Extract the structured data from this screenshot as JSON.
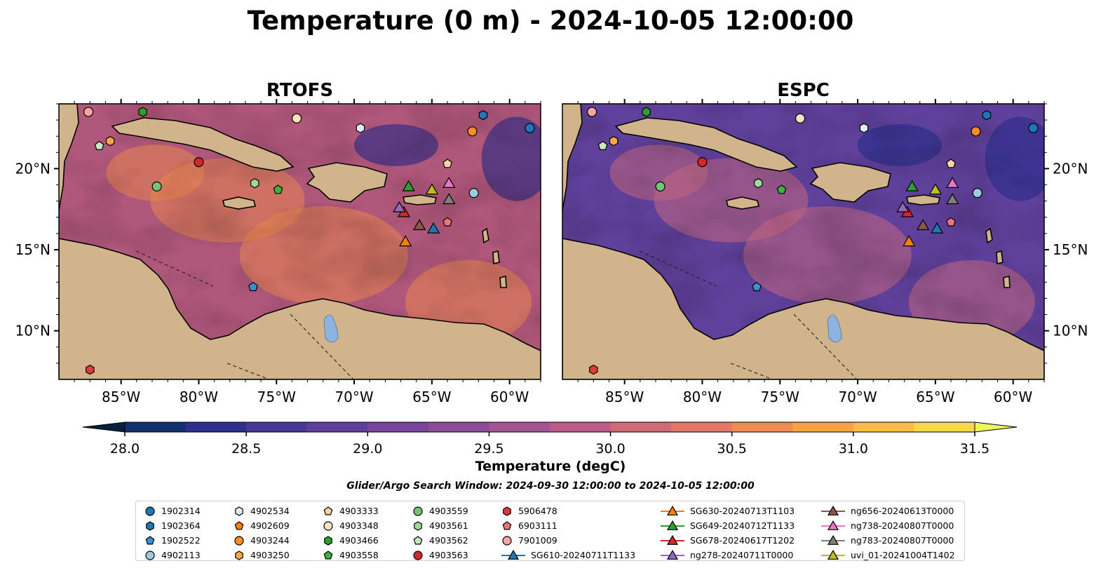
{
  "title": "Temperature (0 m) - 2024-10-05 12:00:00",
  "subtitle": "Glider/Argo Search Window: 2024-09-30 12:00:00 to 2024-10-05 12:00:00",
  "colorbar": {
    "label": "Temperature (degC)",
    "min": 28.0,
    "max": 31.5,
    "step": 0.25,
    "ticks": [
      "28.0",
      "28.5",
      "29.0",
      "29.5",
      "30.0",
      "30.5",
      "31.0",
      "31.5"
    ],
    "colors": [
      "#0b1f3a",
      "#12306f",
      "#2d2f8c",
      "#483996",
      "#5e3f99",
      "#77459a",
      "#8e4c98",
      "#a45493",
      "#bb5d88",
      "#d06978",
      "#e37866",
      "#f08b52",
      "#f7a145",
      "#f9bd47",
      "#f6d74f",
      "#eef65f"
    ]
  },
  "chart_data": [
    {
      "type": "map",
      "title": "RTOFS",
      "xlim": [
        -89,
        -58
      ],
      "ylim": [
        7,
        24
      ],
      "xticks": [
        "85°W",
        "80°W",
        "75°W",
        "70°W",
        "65°W",
        "60°W"
      ],
      "yticks": [
        "20°N",
        "15°N",
        "10°N"
      ],
      "ocean_base_color": "#b0587a",
      "warm_patch_color": "#e8854f",
      "cool_patch_color": "#3a2f86",
      "land_color": "#d2b48c",
      "lake_color": "#8fb3e0"
    },
    {
      "type": "map",
      "title": "ESPC",
      "xlim": [
        -89,
        -58
      ],
      "ylim": [
        7,
        24
      ],
      "xticks": [
        "85°W",
        "80°W",
        "75°W",
        "70°W",
        "65°W",
        "60°W"
      ],
      "yticks": [
        "20°N",
        "15°N",
        "10°N"
      ],
      "ocean_base_color": "#5f409a",
      "warm_patch_color": "#c26680",
      "cool_patch_color": "#2d2f8c",
      "land_color": "#d2b48c",
      "lake_color": "#8fb3e0"
    }
  ],
  "platforms": [
    {
      "id": "1902314",
      "lon": -58.7,
      "lat": 22.5,
      "marker": "circle",
      "color": "#1f77b4"
    },
    {
      "id": "1902364",
      "lon": -61.7,
      "lat": 23.3,
      "marker": "hexagon",
      "color": "#1f77b4"
    },
    {
      "id": "1902522",
      "lon": -76.5,
      "lat": 12.7,
      "marker": "pentagon",
      "color": "#3a8fd0"
    },
    {
      "id": "4902113",
      "lon": -62.3,
      "lat": 18.5,
      "marker": "circle",
      "color": "#9ecae1"
    },
    {
      "id": "4902534",
      "lon": -69.6,
      "lat": 22.5,
      "marker": "hexagon",
      "color": "#d9efff"
    },
    {
      "id": "4902609",
      "lon": null,
      "lat": null,
      "marker": "pentagon",
      "color": "#ff7f0e"
    },
    {
      "id": "4903244",
      "lon": -62.4,
      "lat": 22.3,
      "marker": "circle",
      "color": "#ff8c28"
    },
    {
      "id": "4903250",
      "lon": -85.7,
      "lat": 21.7,
      "marker": "hexagon",
      "color": "#ffa64d"
    },
    {
      "id": "4903333",
      "lon": -64.0,
      "lat": 20.3,
      "marker": "pentagon",
      "color": "#ffd1a3"
    },
    {
      "id": "4903348",
      "lon": -73.7,
      "lat": 23.1,
      "marker": "circle",
      "color": "#ffe1c2"
    },
    {
      "id": "4903466",
      "lon": -83.6,
      "lat": 23.5,
      "marker": "hexagon",
      "color": "#2ca02c"
    },
    {
      "id": "4903558",
      "lon": -74.9,
      "lat": 18.7,
      "marker": "pentagon",
      "color": "#3cb43c"
    },
    {
      "id": "4903559",
      "lon": -82.7,
      "lat": 18.9,
      "marker": "circle",
      "color": "#74c476"
    },
    {
      "id": "4903561",
      "lon": -76.4,
      "lat": 19.1,
      "marker": "hexagon",
      "color": "#a1d99b"
    },
    {
      "id": "4903562",
      "lon": -86.4,
      "lat": 21.4,
      "marker": "pentagon",
      "color": "#c7e9c0"
    },
    {
      "id": "4903563",
      "lon": -80.0,
      "lat": 20.4,
      "marker": "circle",
      "color": "#d62728"
    },
    {
      "id": "5906478",
      "lon": null,
      "lat": null,
      "marker": "hexagon",
      "color": "#e03b3b"
    },
    {
      "id": "6903111",
      "lon": -64.0,
      "lat": 16.7,
      "marker": "pentagon",
      "color": "#e8767a"
    },
    {
      "id": "7901009",
      "lon": -87.1,
      "lat": 23.5,
      "marker": "circle",
      "color": "#f4a6a3"
    },
    {
      "id": "5906478_b",
      "lon": -87.0,
      "lat": 7.6,
      "marker": "hexagon",
      "color": "#e03b3b"
    }
  ],
  "gliders": [
    {
      "id": "SG610-20240711T1133",
      "lon": -64.9,
      "lat": 16.3,
      "color": "#1f77b4"
    },
    {
      "id": "SG630-20240713T1103",
      "lon": -66.7,
      "lat": 15.5,
      "color": "#ff7f0e"
    },
    {
      "id": "SG649-20240712T1133",
      "lon": -66.5,
      "lat": 18.9,
      "color": "#2ca02c"
    },
    {
      "id": "SG678-20240617T1202",
      "lon": -66.8,
      "lat": 17.3,
      "color": "#d62728"
    },
    {
      "id": "ng278-20240711T0000",
      "lon": -67.1,
      "lat": 17.6,
      "color": "#9467bd"
    },
    {
      "id": "ng656-20240613T0000",
      "lon": -65.8,
      "lat": 16.5,
      "color": "#8c564b"
    },
    {
      "id": "ng738-20240807T0000",
      "lon": -63.9,
      "lat": 19.1,
      "color": "#e377c2"
    },
    {
      "id": "ng783-20240807T0000",
      "lon": -63.9,
      "lat": 18.1,
      "color": "#7f7f7f"
    },
    {
      "id": "uvi_01-20241004T1402",
      "lon": -65.0,
      "lat": 18.7,
      "color": "#bcbd22"
    }
  ],
  "legend": [
    {
      "label": "1902314",
      "marker": "circle",
      "color": "#1f77b4",
      "line": false
    },
    {
      "label": "1902364",
      "marker": "hexagon",
      "color": "#1f77b4",
      "line": false
    },
    {
      "label": "1902522",
      "marker": "pentagon",
      "color": "#3a8fd0",
      "line": false
    },
    {
      "label": "4902113",
      "marker": "circle",
      "color": "#9ecae1",
      "line": false
    },
    {
      "label": "4902534",
      "marker": "hexagon",
      "color": "#d9efff",
      "line": false
    },
    {
      "label": "4902609",
      "marker": "pentagon",
      "color": "#ff7f0e",
      "line": false
    },
    {
      "label": "4903244",
      "marker": "circle",
      "color": "#ff8c28",
      "line": false
    },
    {
      "label": "4903250",
      "marker": "hexagon",
      "color": "#ffa64d",
      "line": false
    },
    {
      "label": "4903333",
      "marker": "pentagon",
      "color": "#ffd1a3",
      "line": false
    },
    {
      "label": "4903348",
      "marker": "circle",
      "color": "#ffe1c2",
      "line": false
    },
    {
      "label": "4903466",
      "marker": "hexagon",
      "color": "#2ca02c",
      "line": false
    },
    {
      "label": "4903558",
      "marker": "pentagon",
      "color": "#3cb43c",
      "line": false
    },
    {
      "label": "4903559",
      "marker": "circle",
      "color": "#74c476",
      "line": false
    },
    {
      "label": "4903561",
      "marker": "hexagon",
      "color": "#a1d99b",
      "line": false
    },
    {
      "label": "4903562",
      "marker": "pentagon",
      "color": "#c7e9c0",
      "line": false
    },
    {
      "label": "4903563",
      "marker": "circle",
      "color": "#d62728",
      "line": false
    },
    {
      "label": "5906478",
      "marker": "hexagon",
      "color": "#e03b3b",
      "line": false
    },
    {
      "label": "6903111",
      "marker": "pentagon",
      "color": "#e8767a",
      "line": false
    },
    {
      "label": "7901009",
      "marker": "circle",
      "color": "#f4a6a3",
      "line": false
    },
    {
      "label": "SG610-20240711T1133",
      "marker": "triangle",
      "color": "#1f77b4",
      "line": true
    },
    {
      "label": "SG630-20240713T1103",
      "marker": "triangle",
      "color": "#ff7f0e",
      "line": true
    },
    {
      "label": "SG649-20240712T1133",
      "marker": "triangle",
      "color": "#2ca02c",
      "line": true
    },
    {
      "label": "SG678-20240617T1202",
      "marker": "triangle",
      "color": "#d62728",
      "line": true
    },
    {
      "label": "ng278-20240711T0000",
      "marker": "triangle",
      "color": "#9467bd",
      "line": true
    },
    {
      "label": "ng656-20240613T0000",
      "marker": "triangle",
      "color": "#8c564b",
      "line": true
    },
    {
      "label": "ng738-20240807T0000",
      "marker": "triangle",
      "color": "#e377c2",
      "line": true
    },
    {
      "label": "ng783-20240807T0000",
      "marker": "triangle",
      "color": "#7f7f7f",
      "line": true
    },
    {
      "label": "uvi_01-20241004T1402",
      "marker": "triangle",
      "color": "#bcbd22",
      "line": true
    }
  ]
}
